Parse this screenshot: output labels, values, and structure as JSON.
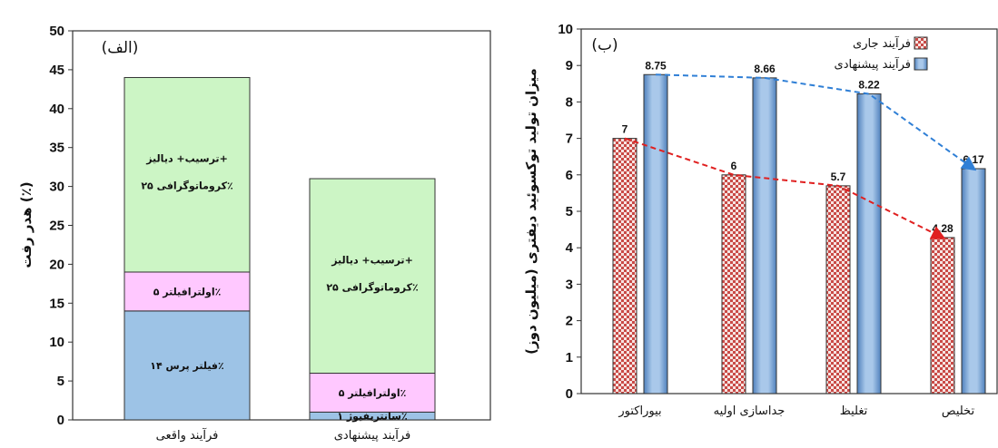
{
  "chart_data": [
    {
      "type": "bar",
      "stacked": true,
      "panel_label": "(الف)",
      "ylabel": "هدر رفت (٪)",
      "ylim": [
        0,
        50
      ],
      "yticks": [
        0,
        5,
        10,
        15,
        20,
        25,
        30,
        35,
        40,
        45,
        50
      ],
      "categories": [
        "فرآیند واقعی",
        "فرآیند پیشنهادی"
      ],
      "segments": [
        {
          "values": [
            14,
            1
          ],
          "color": "#9dc3e6",
          "labels": [
            "فیلتر پرس ۱۴٪",
            "سانتریفیوژ ۱٪"
          ]
        },
        {
          "values": [
            5,
            5
          ],
          "color": "#ffc8ff",
          "labels": [
            "اولترافیلتر ۵٪",
            "اولترافیلتر ۵٪"
          ]
        },
        {
          "values": [
            25,
            25
          ],
          "color": "#ccf5c5",
          "labels": [
            "ترسیب+ دیالیز+|کروماتوگرافی ۲۵٪",
            "ترسیب+ دیالیز+|کروماتوگرافی ۲۵٪"
          ]
        }
      ],
      "grid": false
    },
    {
      "type": "bar",
      "panel_label": "(ب)",
      "ylabel": "میزان تولید توکسوئید دیفتری (میلیون دوز)",
      "ylim": [
        0,
        10
      ],
      "yticks": [
        0,
        1,
        2,
        3,
        4,
        5,
        6,
        7,
        8,
        9,
        10
      ],
      "categories": [
        "بیوراکتور",
        "جداسازی اولیه",
        "تغلیظ",
        "تخلیص"
      ],
      "series": [
        {
          "name": "فرآیند جاری",
          "values": [
            7,
            6,
            5.7,
            4.28
          ],
          "labels": [
            "7",
            "6",
            "5.7",
            "4.28"
          ],
          "color": "#c0504d",
          "trend_color": "#e02020"
        },
        {
          "name": "فرآیند پیشنهادی",
          "values": [
            8.75,
            8.66,
            8.22,
            6.17
          ],
          "labels": [
            "8.75",
            "8.66",
            "8.22",
            "6.17"
          ],
          "color": "#6fa0d4",
          "trend_color": "#2f7fd6"
        }
      ],
      "legend": "top-right",
      "grid": false
    }
  ]
}
